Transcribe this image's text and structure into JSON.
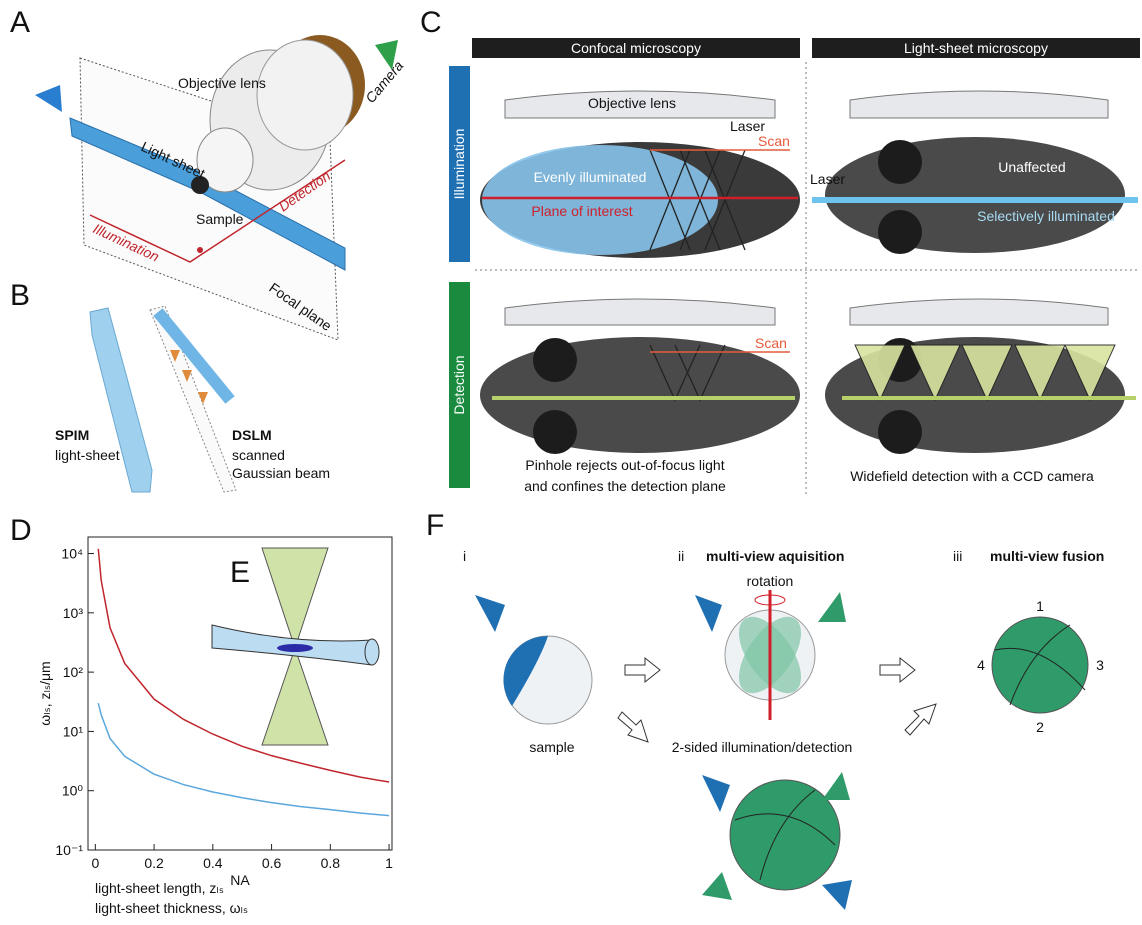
{
  "panel_a": {
    "label": "A",
    "objective_lens": "Objective lens",
    "camera": "Camera",
    "light_sheet": "Light sheet",
    "sample": "Sample",
    "detection": "Detection",
    "illumination": "Illumination",
    "focal_plane": "Focal plane"
  },
  "panel_b": {
    "label": "B",
    "spim": "SPIM",
    "spim_desc": "light-sheet",
    "dslm": "DSLM",
    "dslm_desc_1": "scanned",
    "dslm_desc_2": "Gaussian beam"
  },
  "panel_c": {
    "label": "C",
    "header_left": "Confocal microscopy",
    "header_right": "Light-sheet microscopy",
    "row_top": "Illumination",
    "row_bottom": "Detection",
    "objective_lens": "Objective lens",
    "laser_left": "Laser",
    "scan_top": "Scan",
    "evenly": "Evenly illuminated",
    "plane": "Plane of interest",
    "laser_right": "Laser",
    "unaffected": "Unaffected",
    "selectively": "Selectively illuminated",
    "scan_bottom": "Scan",
    "pinhole_1": "Pinhole rejects out-of-focus light",
    "pinhole_2": "and confines the detection plane",
    "widefield": "Widefield detection with a CCD camera"
  },
  "panel_e": {
    "label": "E"
  },
  "panel_f": {
    "label": "F",
    "step_1": "i",
    "step_2": "ii",
    "step_2_title": "multi-view aquisition",
    "step_3": "iii",
    "step_3_title": "multi-view fusion",
    "rotation": "rotation",
    "sample": "sample",
    "two_sided": "2-sided illumination/detection",
    "view_1": "1",
    "view_2": "2",
    "view_3": "3",
    "view_4": "4"
  },
  "chart_data": {
    "type": "line",
    "label": "D",
    "x_label": "NA",
    "y_label": "ωₗₛ, zₗₛ/μm",
    "yscale": "log",
    "x": [
      0.01,
      0.02,
      0.05,
      0.1,
      0.2,
      0.3,
      0.4,
      0.5,
      0.6,
      0.7,
      0.8,
      0.9,
      1.0
    ],
    "series": [
      {
        "name": "light-sheet length, zₗₛ",
        "color": "#c0262d",
        "values": [
          12000,
          3500,
          560,
          140,
          35,
          16,
          9,
          5.6,
          3.9,
          2.9,
          2.2,
          1.7,
          1.4
        ]
      },
      {
        "name": "light-sheet thickness, ωₗₛ",
        "color": "#5aa7dc",
        "values": [
          30,
          19,
          7.6,
          3.8,
          1.9,
          1.27,
          0.95,
          0.76,
          0.63,
          0.54,
          0.48,
          0.42,
          0.38
        ]
      }
    ],
    "xlim": [
      -0.025,
      1.01
    ],
    "ylim": [
      0.1,
      19000
    ],
    "xticks": [
      0,
      0.2,
      0.4,
      0.6,
      0.8,
      1
    ],
    "yticks": [
      {
        "value": 0.1,
        "label": "10⁻¹"
      },
      {
        "value": 1,
        "label": "10⁰"
      },
      {
        "value": 10,
        "label": "10¹"
      },
      {
        "value": 100,
        "label": "10²"
      },
      {
        "value": 1000,
        "label": "10³"
      },
      {
        "value": 10000,
        "label": "10⁴"
      }
    ]
  }
}
